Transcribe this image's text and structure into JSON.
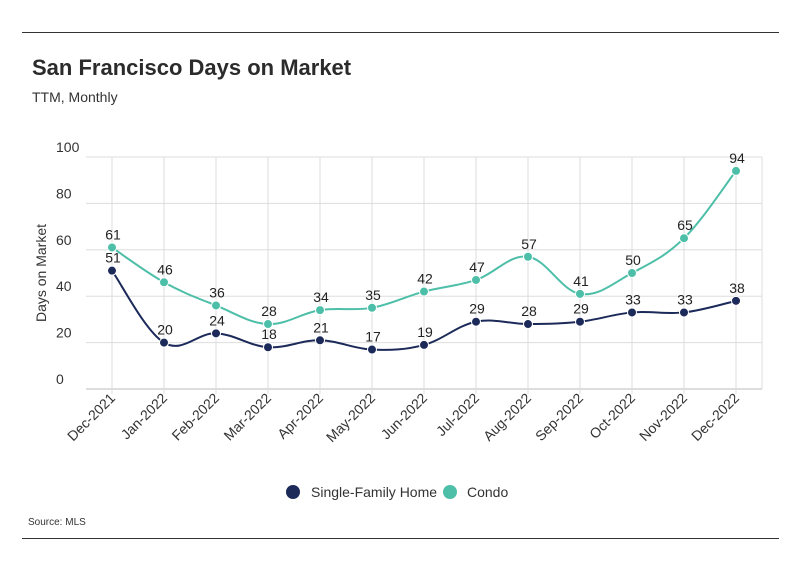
{
  "header": {
    "title": "San Francisco Days on Market",
    "subtitle": "TTM, Monthly"
  },
  "footer": {
    "source": "Source:  MLS"
  },
  "colors": {
    "single_family": "#1c2a5a",
    "condo": "#4dbfa8",
    "grid": "#dddddd"
  },
  "chart_data": {
    "type": "line",
    "title": "San Francisco Days on Market",
    "subtitle": "TTM, Monthly",
    "xlabel": "",
    "ylabel": "Days on Market",
    "ylim": [
      0,
      100
    ],
    "yticks": [
      0,
      20,
      40,
      60,
      80,
      100
    ],
    "grid": true,
    "legend_position": "bottom-center",
    "categories": [
      "Dec-2021",
      "Jan-2022",
      "Feb-2022",
      "Mar-2022",
      "Apr-2022",
      "May-2022",
      "Jun-2022",
      "Jul-2022",
      "Aug-2022",
      "Sep-2022",
      "Oct-2022",
      "Nov-2022",
      "Dec-2022"
    ],
    "series": [
      {
        "name": "Single-Family Home",
        "values": [
          51,
          20,
          24,
          18,
          21,
          17,
          19,
          29,
          28,
          29,
          33,
          33,
          38
        ]
      },
      {
        "name": "Condo",
        "values": [
          61,
          46,
          36,
          28,
          34,
          35,
          42,
          47,
          57,
          41,
          50,
          65,
          94
        ]
      }
    ]
  }
}
